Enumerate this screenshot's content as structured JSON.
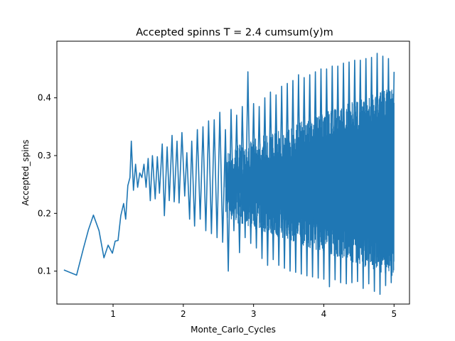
{
  "chart_data": {
    "type": "line",
    "title": "Accepted spinns T = 2.4 cumsum(y)m",
    "xlabel": "Monte_Carlo_Cycles",
    "ylabel": "Accepted_spins",
    "xlim": [
      0.2,
      5.22
    ],
    "ylim": [
      0.043,
      0.498
    ],
    "xticks": [
      1,
      2,
      3,
      4,
      5
    ],
    "yticks": [
      0.1,
      0.2,
      0.3,
      0.4
    ],
    "grid": false,
    "legend": "none",
    "series": [
      {
        "color": "#1f77b4",
        "x": [
          0.3,
          0.48,
          0.58,
          0.65,
          0.72,
          0.8,
          0.87,
          0.93,
          0.99,
          1.03,
          1.07,
          1.11,
          1.15,
          1.18,
          1.21,
          1.24,
          1.26,
          1.29,
          1.32,
          1.35,
          1.38,
          1.41,
          1.44,
          1.47,
          1.5,
          1.53,
          1.56,
          1.6,
          1.63,
          1.66,
          1.7,
          1.73,
          1.77,
          1.8,
          1.84,
          1.87,
          1.91,
          1.94,
          1.98,
          2.02,
          2.05,
          2.09,
          2.12,
          2.16,
          2.2,
          2.24,
          2.28,
          2.32,
          2.36,
          2.4,
          2.44,
          2.48,
          2.52,
          2.56,
          2.6,
          2.64,
          2.68,
          2.72,
          2.76,
          2.8,
          2.84,
          2.88,
          2.92,
          2.96,
          3.0,
          3.04,
          3.08,
          3.12,
          3.16,
          3.2,
          3.24,
          3.28,
          3.32,
          3.36,
          3.4,
          3.44,
          3.48,
          3.52,
          3.56,
          3.6,
          3.64,
          3.68,
          3.72,
          3.76,
          3.8,
          3.84,
          3.88,
          3.92,
          3.96,
          4.0,
          4.04,
          4.08,
          4.12,
          4.16,
          4.2,
          4.24,
          4.28,
          4.32,
          4.36,
          4.4,
          4.44,
          4.48,
          4.52,
          4.56,
          4.6,
          4.64,
          4.68,
          4.72,
          4.76,
          4.8,
          4.84,
          4.88,
          4.92,
          4.96,
          5.0
        ],
        "y": [
          0.102,
          0.093,
          0.14,
          0.172,
          0.197,
          0.17,
          0.123,
          0.145,
          0.131,
          0.152,
          0.153,
          0.196,
          0.217,
          0.19,
          0.248,
          0.262,
          0.325,
          0.24,
          0.285,
          0.245,
          0.27,
          0.262,
          0.285,
          0.245,
          0.295,
          0.222,
          0.3,
          0.225,
          0.298,
          0.235,
          0.32,
          0.196,
          0.315,
          0.222,
          0.335,
          0.22,
          0.325,
          0.218,
          0.34,
          0.23,
          0.305,
          0.19,
          0.325,
          0.178,
          0.345,
          0.19,
          0.35,
          0.17,
          0.36,
          0.165,
          0.362,
          0.158,
          0.375,
          0.15,
          0.345,
          0.1,
          0.38,
          0.17,
          0.37,
          0.132,
          0.385,
          0.158,
          0.445,
          0.148,
          0.39,
          0.14,
          0.385,
          0.122,
          0.4,
          0.11,
          0.41,
          0.12,
          0.405,
          0.11,
          0.42,
          0.105,
          0.425,
          0.1,
          0.43,
          0.098,
          0.44,
          0.095,
          0.435,
          0.092,
          0.44,
          0.09,
          0.445,
          0.088,
          0.45,
          0.086,
          0.45,
          0.073,
          0.455,
          0.085,
          0.455,
          0.08,
          0.46,
          0.078,
          0.462,
          0.08,
          0.465,
          0.082,
          0.465,
          0.07,
          0.468,
          0.078,
          0.47,
          0.065,
          0.477,
          0.06,
          0.472,
          0.075,
          0.468,
          0.08,
          0.445
        ]
      }
    ]
  }
}
